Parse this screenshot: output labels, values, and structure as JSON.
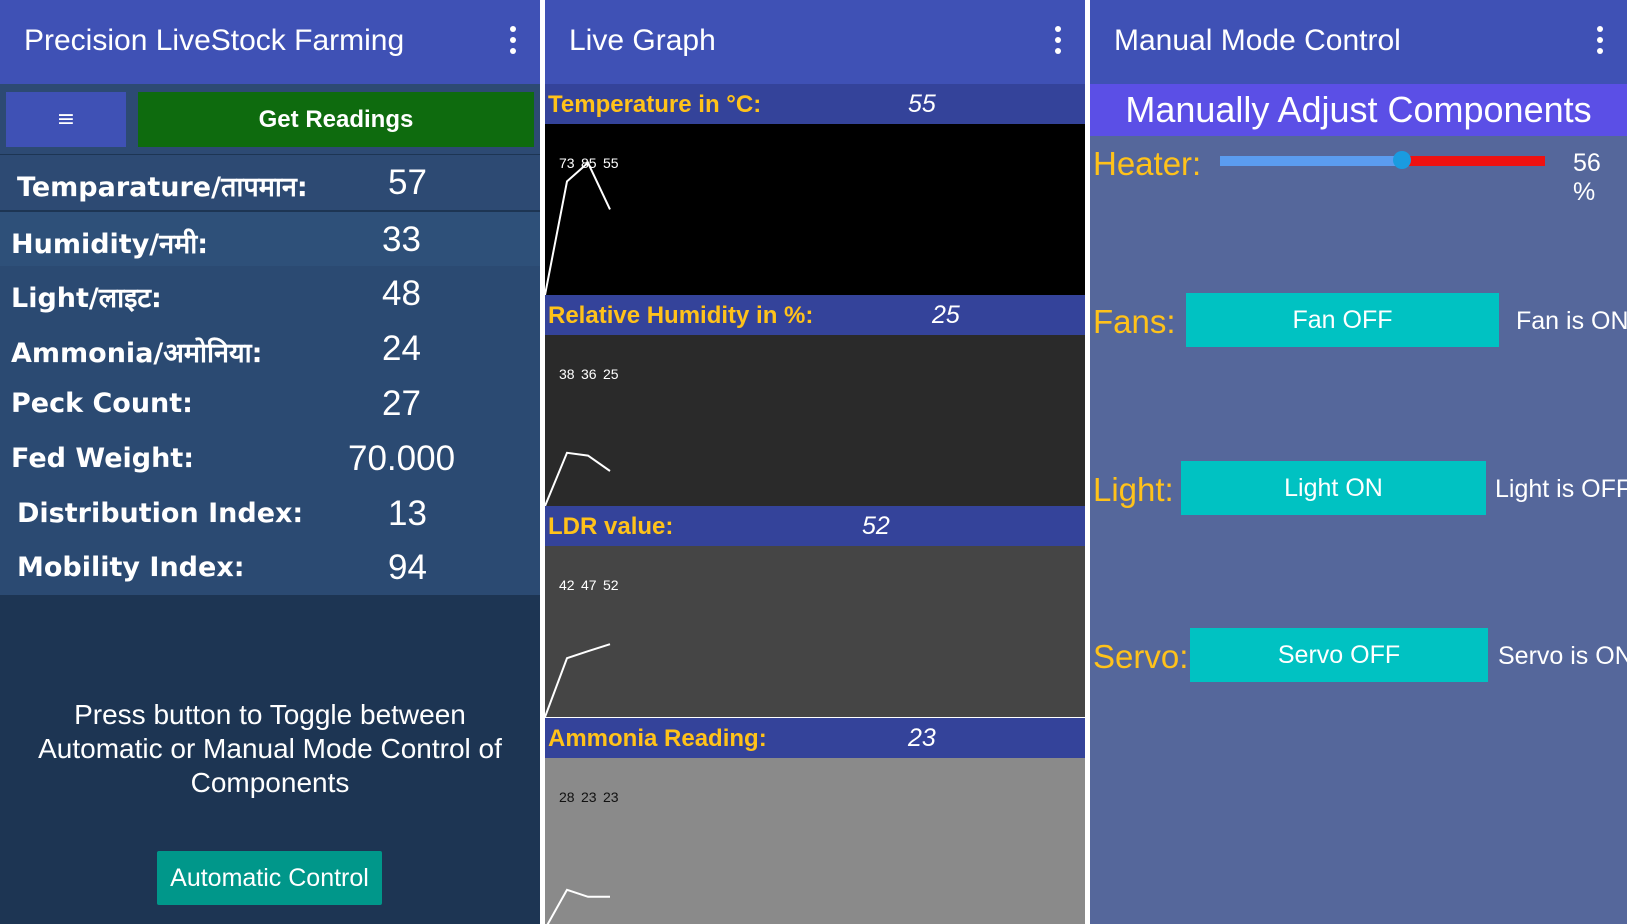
{
  "panel1": {
    "title": "Precision LiveStock Farming",
    "menu_icon": "hamburger-icon",
    "menu_glyph": "≡",
    "get_readings": "Get Readings",
    "readings": [
      {
        "label": "Temparature/तापमान:",
        "value": "57"
      },
      {
        "label": "Humidity/नमी:",
        "value": "33"
      },
      {
        "label": "Light/लाइट:",
        "value": "48"
      },
      {
        "label": "Ammonia/अमोनिया:",
        "value": "24"
      },
      {
        "label": "Peck Count:",
        "value": "27"
      },
      {
        "label": "Fed Weight:",
        "value": "70.000"
      },
      {
        "label": "Distribution Index:",
        "value": "13"
      },
      {
        "label": "Mobility Index:",
        "value": "94"
      }
    ],
    "toggle_text": "Press button to Toggle between Automatic or Manual Mode Control of Components",
    "auto_button": "Automatic Control"
  },
  "panel2": {
    "title": "Live Graph",
    "graphs": [
      {
        "label": "Temperature in °C:",
        "value": "55",
        "bg": "#000000",
        "points": [
          0,
          73,
          85,
          55
        ],
        "labels": [
          "73",
          "85",
          "55"
        ],
        "ymax": 90
      },
      {
        "label": "Relative Humidity in %:",
        "value": "25",
        "bg": "#2a2a2a",
        "points": [
          0,
          38,
          36,
          25
        ],
        "labels": [
          "38",
          "36",
          "25"
        ],
        "ymax": 100
      },
      {
        "label": "LDR value:",
        "value": "52",
        "bg": "#454545",
        "points": [
          0,
          42,
          47,
          52
        ],
        "labels": [
          "42",
          "47",
          "52"
        ],
        "ymax": 100
      },
      {
        "label": "Ammonia Reading:",
        "value": "23",
        "bg": "#8a8a8a",
        "points": [
          0,
          28,
          23,
          23
        ],
        "labels": [
          "28",
          "23",
          "23"
        ],
        "ymax": 100
      }
    ]
  },
  "panel3": {
    "title": "Manual Mode Control",
    "banner": "Manually Adjust Components",
    "heater": {
      "label": "Heater:",
      "value": 56,
      "value_text": "56 %"
    },
    "fans": {
      "label": "Fans:",
      "button": "Fan OFF",
      "status": "Fan is ON"
    },
    "light": {
      "label": "Light:",
      "button": "Light ON",
      "status": "Light is OFF"
    },
    "servo": {
      "label": "Servo:",
      "button": "Servo OFF",
      "status": "Servo is ON"
    }
  },
  "colors": {
    "appbar": "#3f51b5",
    "accent_yellow": "#ffc21a",
    "get_readings_green": "#0e6b0e",
    "teal_button": "#00c2c2",
    "slider_red": "#ee1111",
    "slider_blue": "#5b9cf0"
  }
}
